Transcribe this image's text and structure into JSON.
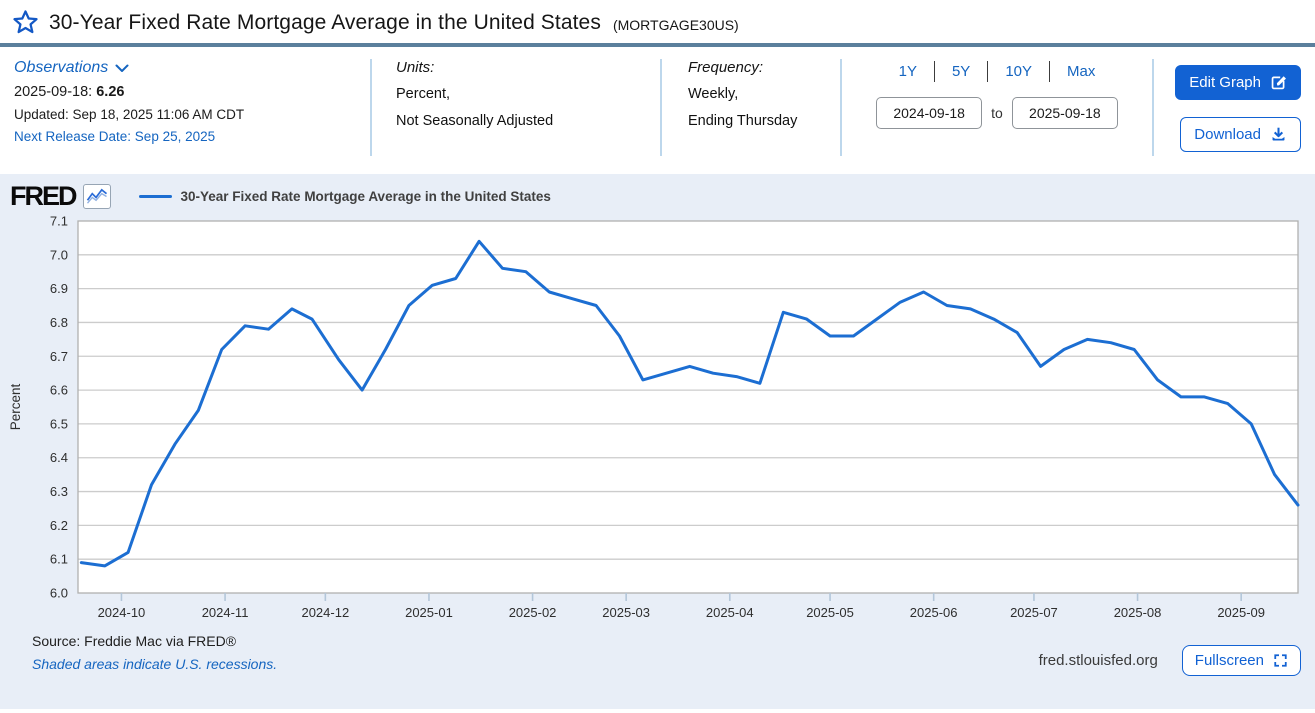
{
  "header": {
    "title": "30-Year Fixed Rate Mortgage Average in the United States",
    "series_id": "(MORTGAGE30US)",
    "observations": {
      "label": "Observations",
      "latest_date": "2025-09-18:",
      "latest_value": "6.26",
      "updated": "Updated: Sep 18, 2025 11:06 AM CDT",
      "next_release": "Next Release Date: Sep 25, 2025"
    },
    "units": {
      "label": "Units:",
      "line1": "Percent,",
      "line2": "Not Seasonally Adjusted"
    },
    "frequency": {
      "label": "Frequency:",
      "line1": "Weekly,",
      "line2": "Ending Thursday"
    },
    "ranges": {
      "r1y": "1Y",
      "r5y": "5Y",
      "r10y": "10Y",
      "rmax": "Max"
    },
    "date_from": "2024-09-18",
    "to_label": "to",
    "date_to": "2025-09-18",
    "edit_graph_label": "Edit Graph",
    "download_label": "Download"
  },
  "graph": {
    "brand": "FRED",
    "legend_label": "30-Year Fixed Rate Mortgage Average in the United States",
    "footer": {
      "source": "Source: Freddie Mac via FRED®",
      "recessions_note": "Shaded areas indicate U.S. recessions.",
      "site": "fred.stlouisfed.org",
      "fullscreen_label": "Fullscreen"
    }
  },
  "colors": {
    "accent_link": "#1565c0",
    "button_blue": "#1262d3",
    "line_blue": "#1c6ed2",
    "panel_bg": "#e8eef7",
    "grid": "#cccccc",
    "plot_border": "#b0b0b0",
    "tick": "#b3c6d9",
    "title_divider": "#5b7f9c"
  },
  "chart_data": {
    "type": "line",
    "title": "30-Year Fixed Rate Mortgage Average in the United States",
    "xlabel": "",
    "ylabel": "Percent",
    "ylim": [
      6.0,
      7.1
    ],
    "y_tick_step": 0.1,
    "grid": true,
    "legend_position": "top-left",
    "x_range": [
      "2024-09-18",
      "2025-09-18"
    ],
    "x_ticks": [
      {
        "date": "2024-10-01",
        "label": "2024-10"
      },
      {
        "date": "2024-11-01",
        "label": "2024-11"
      },
      {
        "date": "2024-12-01",
        "label": "2024-12"
      },
      {
        "date": "2025-01-01",
        "label": "2025-01"
      },
      {
        "date": "2025-02-01",
        "label": "2025-02"
      },
      {
        "date": "2025-03-01",
        "label": "2025-03"
      },
      {
        "date": "2025-04-01",
        "label": "2025-04"
      },
      {
        "date": "2025-05-01",
        "label": "2025-05"
      },
      {
        "date": "2025-06-01",
        "label": "2025-06"
      },
      {
        "date": "2025-07-01",
        "label": "2025-07"
      },
      {
        "date": "2025-08-01",
        "label": "2025-08"
      },
      {
        "date": "2025-09-01",
        "label": "2025-09"
      }
    ],
    "series": [
      {
        "name": "30-Year Fixed Rate Mortgage Average in the United States",
        "color": "#1c6ed2",
        "dates": [
          "2024-09-19",
          "2024-09-26",
          "2024-10-03",
          "2024-10-10",
          "2024-10-17",
          "2024-10-24",
          "2024-10-31",
          "2024-11-07",
          "2024-11-14",
          "2024-11-21",
          "2024-11-27",
          "2024-12-05",
          "2024-12-12",
          "2024-12-19",
          "2024-12-26",
          "2025-01-02",
          "2025-01-09",
          "2025-01-16",
          "2025-01-23",
          "2025-01-30",
          "2025-02-06",
          "2025-02-13",
          "2025-02-20",
          "2025-02-27",
          "2025-03-06",
          "2025-03-13",
          "2025-03-20",
          "2025-03-27",
          "2025-04-03",
          "2025-04-10",
          "2025-04-17",
          "2025-04-24",
          "2025-05-01",
          "2025-05-08",
          "2025-05-15",
          "2025-05-22",
          "2025-05-29",
          "2025-06-05",
          "2025-06-12",
          "2025-06-19",
          "2025-06-26",
          "2025-07-03",
          "2025-07-10",
          "2025-07-17",
          "2025-07-24",
          "2025-07-31",
          "2025-08-07",
          "2025-08-14",
          "2025-08-21",
          "2025-08-28",
          "2025-09-04",
          "2025-09-11",
          "2025-09-18"
        ],
        "values": [
          6.09,
          6.08,
          6.12,
          6.32,
          6.44,
          6.54,
          6.72,
          6.79,
          6.78,
          6.84,
          6.81,
          6.69,
          6.6,
          6.72,
          6.85,
          6.91,
          6.93,
          7.04,
          6.96,
          6.95,
          6.89,
          6.87,
          6.85,
          6.76,
          6.63,
          6.65,
          6.67,
          6.65,
          6.64,
          6.62,
          6.83,
          6.81,
          6.76,
          6.76,
          6.81,
          6.86,
          6.89,
          6.85,
          6.84,
          6.81,
          6.77,
          6.67,
          6.72,
          6.75,
          6.74,
          6.72,
          6.63,
          6.58,
          6.58,
          6.56,
          6.5,
          6.35,
          6.26
        ]
      }
    ]
  }
}
